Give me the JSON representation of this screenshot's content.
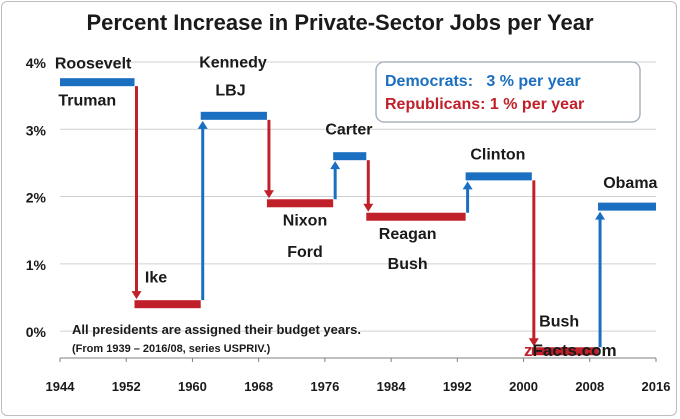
{
  "chart_data": {
    "type": "line",
    "title": "Percent Increase in Private-Sector Jobs per Year",
    "xlabel": "",
    "ylabel": "",
    "xlim": [
      1944,
      2016
    ],
    "ylim": [
      -0.4,
      4.0
    ],
    "x_ticks": [
      "1944",
      "1952",
      "1960",
      "1968",
      "1976",
      "1984",
      "1992",
      "2000",
      "2008",
      "2016"
    ],
    "y_ticks": [
      "0%",
      "1%",
      "2%",
      "3%",
      "4%"
    ],
    "grid": true,
    "segments": [
      {
        "president": "Roosevelt",
        "party": "D",
        "start": 1944,
        "end": 1953,
        "value": 3.7
      },
      {
        "president": "Truman",
        "party": "D",
        "start": 1944,
        "end": 1953,
        "value": 3.7
      },
      {
        "president": "Ike",
        "party": "R",
        "start": 1953,
        "end": 1961,
        "value": 0.4
      },
      {
        "president": "Kennedy",
        "party": "D",
        "start": 1961,
        "end": 1969,
        "value": 3.2
      },
      {
        "president": "LBJ",
        "party": "D",
        "start": 1961,
        "end": 1969,
        "value": 3.2
      },
      {
        "president": "Nixon",
        "party": "R",
        "start": 1969,
        "end": 1977,
        "value": 1.9
      },
      {
        "president": "Ford",
        "party": "R",
        "start": 1969,
        "end": 1977,
        "value": 1.9
      },
      {
        "president": "Carter",
        "party": "D",
        "start": 1977,
        "end": 1981,
        "value": 2.6
      },
      {
        "president": "Reagan",
        "party": "R",
        "start": 1981,
        "end": 1993,
        "value": 1.7
      },
      {
        "president": "Bush",
        "party": "R",
        "start": 1981,
        "end": 1993,
        "value": 1.7
      },
      {
        "president": "Clinton",
        "party": "D",
        "start": 1993,
        "end": 2001,
        "value": 2.3
      },
      {
        "president": "Bush",
        "party": "R",
        "start": 2001,
        "end": 2009,
        "value": -0.3
      },
      {
        "president": "Obama",
        "party": "D",
        "start": 2009,
        "end": 2016,
        "value": 1.85
      }
    ],
    "labels": [
      {
        "text": "Roosevelt",
        "x": 1948.0,
        "y": 3.9
      },
      {
        "text": "Truman",
        "x": 1947.3,
        "y": 3.35
      },
      {
        "text": "Ike",
        "x": 1955.6,
        "y": 0.72
      },
      {
        "text": "Kennedy",
        "x": 1964.9,
        "y": 3.92
      },
      {
        "text": "LBJ",
        "x": 1964.6,
        "y": 3.5
      },
      {
        "text": "Nixon",
        "x": 1973.6,
        "y": 1.57
      },
      {
        "text": "Ford",
        "x": 1973.6,
        "y": 1.1
      },
      {
        "text": "Carter",
        "x": 1978.9,
        "y": 2.92
      },
      {
        "text": "Reagan",
        "x": 1986.0,
        "y": 1.37
      },
      {
        "text": "Bush",
        "x": 1986.0,
        "y": 0.92
      },
      {
        "text": "Clinton",
        "x": 1996.9,
        "y": 2.55
      },
      {
        "text": "Bush",
        "x": 2004.3,
        "y": 0.07
      },
      {
        "text": "Obama",
        "x": 2012.9,
        "y": 2.13
      }
    ],
    "legend": {
      "position": "top-right",
      "entries": [
        {
          "text": "Democrats:   3 % per year",
          "color": "#1a6fc0"
        },
        {
          "text": "Republicans: 1 % per year",
          "color": "#c0202a"
        }
      ]
    },
    "notes": [
      "All presidents are assigned their budget years.",
      "(From 1939 – 2016/08, series USPRIV.)"
    ],
    "credit": "zFacts.com",
    "colors": {
      "democrat": "#1a6fc0",
      "republican": "#c0202a",
      "text": "#1a1a1a",
      "grid": "#d0d0d0"
    }
  }
}
